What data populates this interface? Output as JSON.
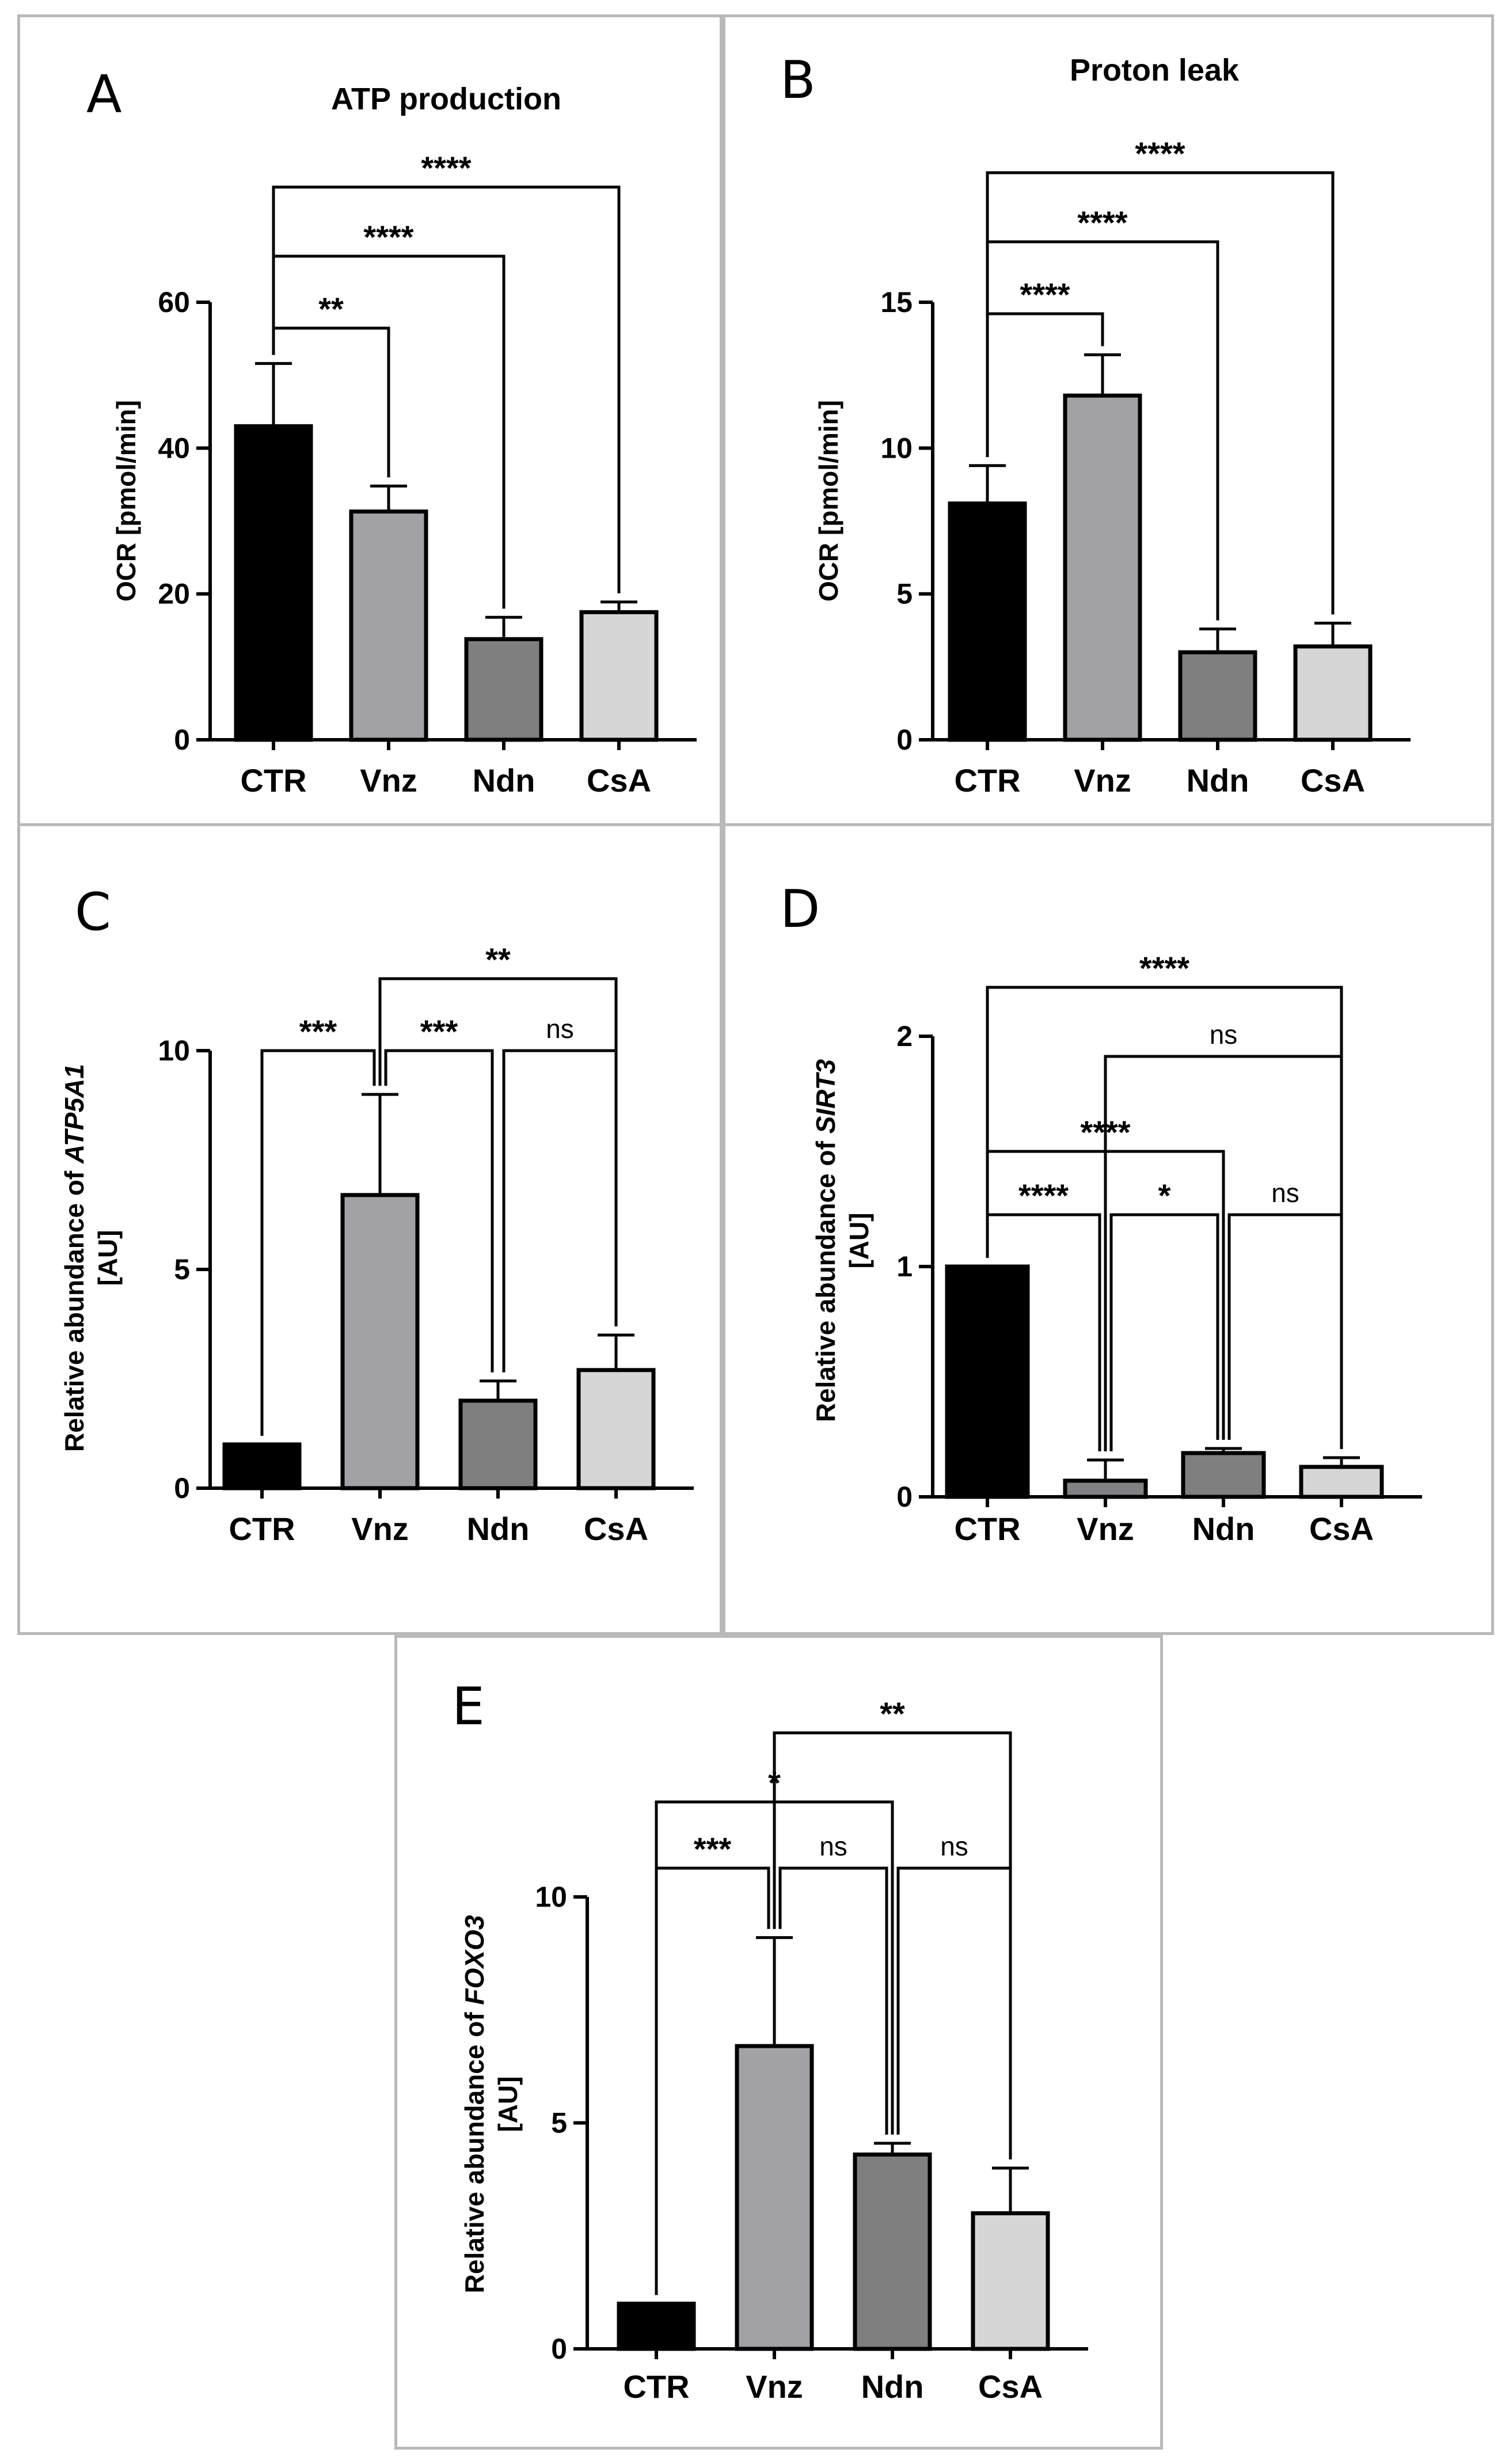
{
  "chart_data": [
    {
      "type": "bar",
      "panel_label": "A",
      "title": "ATP production",
      "ylabel": "OCR [pmol/min]",
      "ylabel_italic": "",
      "ylabel_line2": "",
      "xlabel": "",
      "ylim": [
        0,
        60
      ],
      "yticks": [
        "0",
        "20",
        "40",
        "60"
      ],
      "categories": [
        "CTR",
        "Vnz",
        "Ndn",
        "CsA"
      ],
      "values": [
        43,
        31.3,
        13.8,
        17.5
      ],
      "errors": [
        8.6,
        3.5,
        3.0,
        1.4
      ],
      "colors": [
        "#000000",
        "#a1a1a6",
        "#7f7f7f",
        "#d6d6d6"
      ],
      "comparisons": [
        {
          "from": "CTR",
          "to": "Vnz",
          "label": "**"
        },
        {
          "from": "CTR",
          "to": "Ndn",
          "label": "****"
        },
        {
          "from": "CTR",
          "to": "CsA",
          "label": "****"
        }
      ]
    },
    {
      "type": "bar",
      "panel_label": "B",
      "title": "Proton leak",
      "ylabel": "OCR [pmol/min]",
      "ylabel_italic": "",
      "ylabel_line2": "",
      "xlabel": "",
      "ylim": [
        0,
        15
      ],
      "yticks": [
        "0",
        "5",
        "10",
        "15"
      ],
      "categories": [
        "CTR",
        "Vnz",
        "Ndn",
        "CsA"
      ],
      "values": [
        8.1,
        11.8,
        3.0,
        3.2
      ],
      "errors": [
        1.3,
        1.4,
        0.8,
        0.8
      ],
      "colors": [
        "#000000",
        "#a1a1a6",
        "#7f7f7f",
        "#d6d6d6"
      ],
      "comparisons": [
        {
          "from": "CTR",
          "to": "Vnz",
          "label": "****"
        },
        {
          "from": "CTR",
          "to": "Ndn",
          "label": "****"
        },
        {
          "from": "CTR",
          "to": "CsA",
          "label": "****"
        }
      ]
    },
    {
      "type": "bar",
      "panel_label": "C",
      "title": "",
      "ylabel": "Relative abundance of ",
      "ylabel_italic": "ATP5A1",
      "ylabel_line2": "[AU]",
      "xlabel": "",
      "ylim": [
        0,
        10
      ],
      "yticks": [
        "0",
        "5",
        "10"
      ],
      "categories": [
        "CTR",
        "Vnz",
        "Ndn",
        "CsA"
      ],
      "values": [
        1.0,
        6.7,
        2.0,
        2.7
      ],
      "errors": [
        0,
        2.3,
        0.45,
        0.8
      ],
      "colors": [
        "#000000",
        "#a1a1a6",
        "#7f7f7f",
        "#d6d6d6"
      ],
      "comparisons": [
        {
          "from": "CTR",
          "to": "Vnz",
          "label": "***"
        },
        {
          "from": "Vnz",
          "to": "Ndn",
          "label": "***"
        },
        {
          "from": "Ndn",
          "to": "CsA",
          "label": "ns"
        },
        {
          "from": "Vnz",
          "to": "CsA",
          "label": "**"
        }
      ]
    },
    {
      "type": "bar",
      "panel_label": "D",
      "title": "",
      "ylabel": "Relative abundance of ",
      "ylabel_italic": "SIRT3",
      "ylabel_line2": "[AU]",
      "xlabel": "",
      "ylim": [
        0,
        2
      ],
      "yticks": [
        "0",
        "1",
        "2"
      ],
      "categories": [
        "CTR",
        "Vnz",
        "Ndn",
        "CsA"
      ],
      "values": [
        1.0,
        0.07,
        0.19,
        0.13
      ],
      "errors": [
        0,
        0.09,
        0.02,
        0.04
      ],
      "colors": [
        "#000000",
        "#808085",
        "#7f7f7f",
        "#d6d6d6"
      ],
      "comparisons": [
        {
          "from": "CTR",
          "to": "Vnz",
          "label": "****"
        },
        {
          "from": "Vnz",
          "to": "Ndn",
          "label": "*"
        },
        {
          "from": "Ndn",
          "to": "CsA",
          "label": "ns"
        },
        {
          "from": "CTR",
          "to": "Ndn",
          "label": "****"
        },
        {
          "from": "Vnz",
          "to": "CsA",
          "label": "ns"
        },
        {
          "from": "CTR",
          "to": "CsA",
          "label": "****"
        }
      ]
    },
    {
      "type": "bar",
      "panel_label": "E",
      "title": "",
      "ylabel": "Relative abundance of ",
      "ylabel_italic": "FOXO3",
      "ylabel_line2": "[AU]",
      "xlabel": "",
      "ylim": [
        0,
        10
      ],
      "yticks": [
        "0",
        "5",
        "10"
      ],
      "categories": [
        "CTR",
        "Vnz",
        "Ndn",
        "CsA"
      ],
      "values": [
        1.0,
        6.7,
        4.3,
        3.0
      ],
      "errors": [
        0,
        2.4,
        0.25,
        1.0
      ],
      "colors": [
        "#000000",
        "#a1a1a6",
        "#7f7f7f",
        "#d6d6d6"
      ],
      "comparisons": [
        {
          "from": "CTR",
          "to": "Vnz",
          "label": "***"
        },
        {
          "from": "Vnz",
          "to": "Ndn",
          "label": "ns"
        },
        {
          "from": "Ndn",
          "to": "CsA",
          "label": "ns"
        },
        {
          "from": "CTR",
          "to": "Ndn",
          "label": "*"
        },
        {
          "from": "Vnz",
          "to": "CsA",
          "label": "**"
        }
      ]
    }
  ]
}
